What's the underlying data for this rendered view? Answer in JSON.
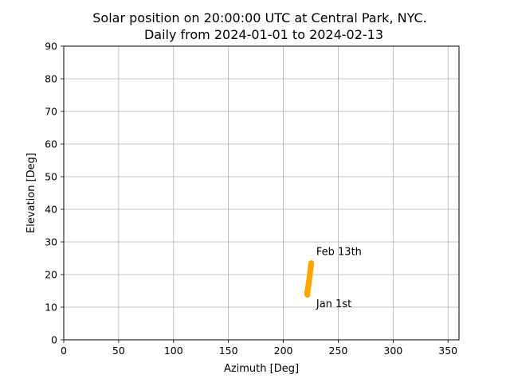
{
  "chart_data": {
    "type": "scatter",
    "title_line1": "Solar position on 20:00:00 UTC at Central Park, NYC.",
    "title_line2": "Daily from 2024-01-01 to 2024-02-13",
    "xlabel": "Azimuth [Deg]",
    "ylabel": "Elevation [Deg]",
    "xlim": [
      0,
      360
    ],
    "ylim": [
      0,
      90
    ],
    "xticks": [
      0,
      50,
      100,
      150,
      200,
      250,
      300,
      350
    ],
    "yticks": [
      0,
      10,
      20,
      30,
      40,
      50,
      60,
      70,
      80,
      90
    ],
    "grid": true,
    "marker_color": "#ffa500",
    "x": [
      222.0,
      221.9,
      221.8,
      221.8,
      221.8,
      221.8,
      221.8,
      221.9,
      221.9,
      222.0,
      222.1,
      222.2,
      222.3,
      222.4,
      222.5,
      222.6,
      222.7,
      222.8,
      222.9,
      223.0,
      223.1,
      223.2,
      223.3,
      223.4,
      223.5,
      223.6,
      223.7,
      223.8,
      223.9,
      224.0,
      224.1,
      224.2,
      224.3,
      224.4,
      224.5,
      224.6,
      224.7,
      224.8,
      224.9,
      225.0,
      225.1,
      225.2,
      225.3,
      225.4
    ],
    "y": [
      13.8,
      13.9,
      14.0,
      14.1,
      14.2,
      14.3,
      14.5,
      14.6,
      14.8,
      15.0,
      15.1,
      15.3,
      15.5,
      15.7,
      15.9,
      16.1,
      16.3,
      16.5,
      16.8,
      17.0,
      17.2,
      17.5,
      17.7,
      18.0,
      18.2,
      18.5,
      18.7,
      19.0,
      19.3,
      19.5,
      19.8,
      20.1,
      20.4,
      20.6,
      20.9,
      21.2,
      21.5,
      21.8,
      22.1,
      22.3,
      22.6,
      22.9,
      23.2,
      23.5
    ],
    "annotations": [
      {
        "text": "Jan 1st",
        "x": 230,
        "y": 10
      },
      {
        "text": "Feb 13th",
        "x": 230,
        "y": 26
      }
    ]
  }
}
